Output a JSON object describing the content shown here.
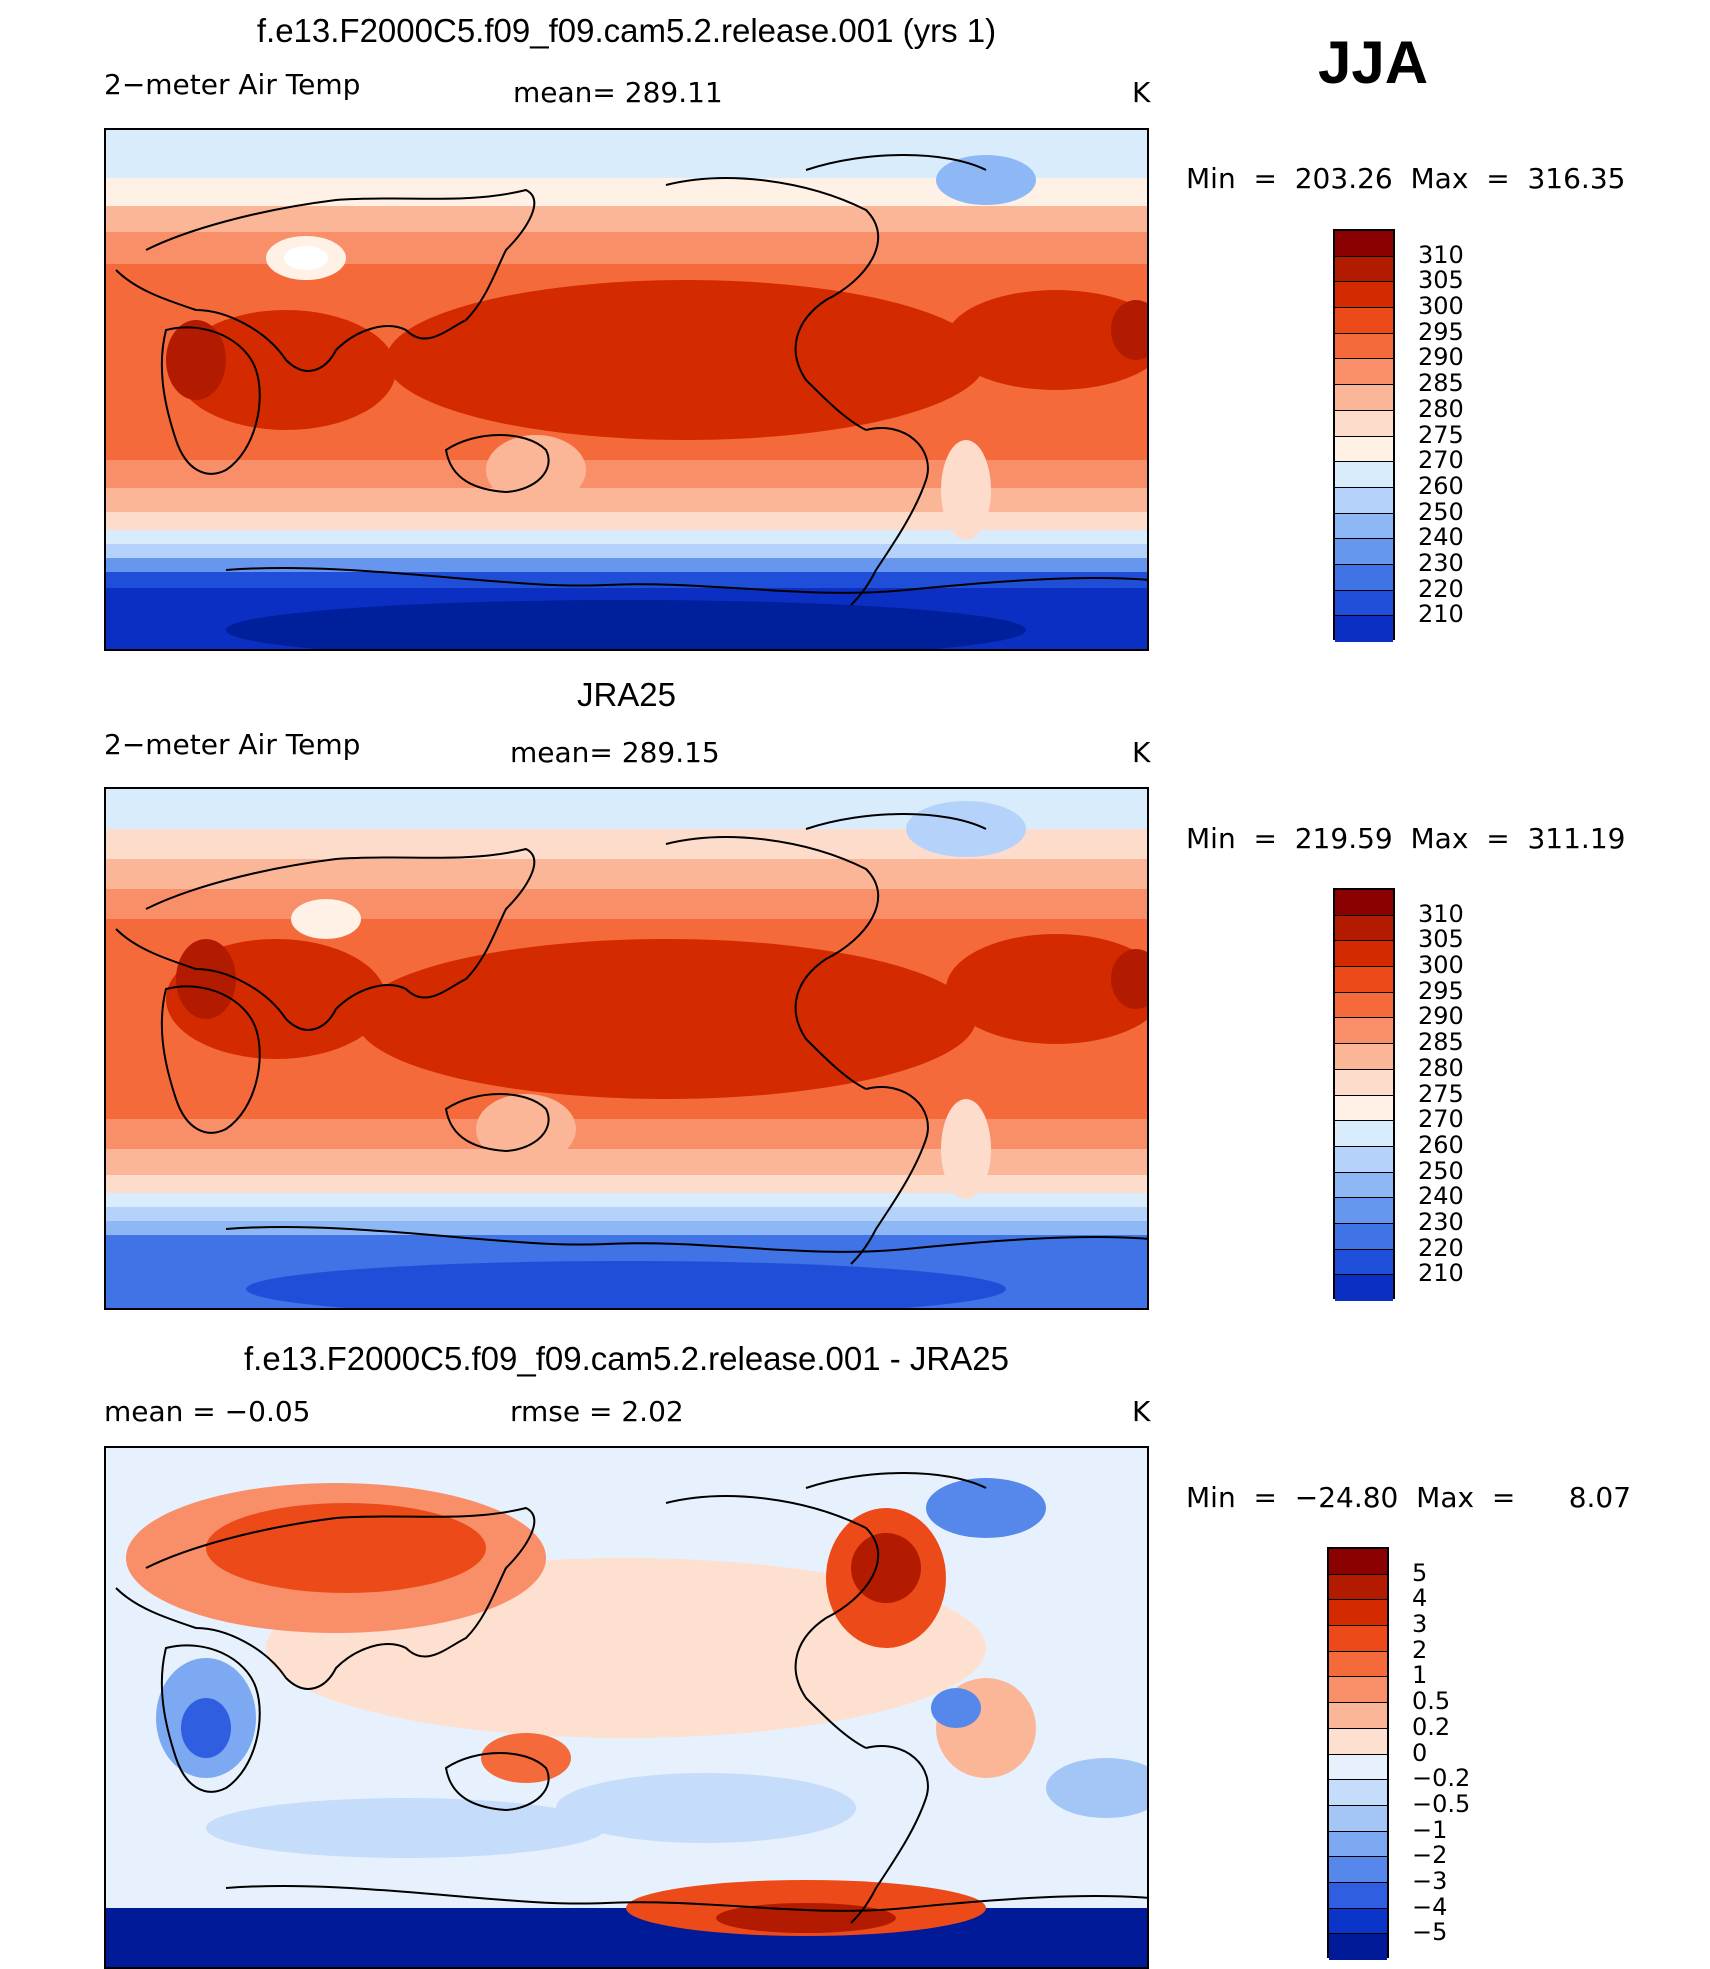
{
  "season": "JJA",
  "panels": [
    {
      "title": "f.e13.F2000C5.f09_f09.cam5.2.release.001 (yrs 1)",
      "left_label": "2−meter Air Temp",
      "center_label": "mean=  289.11",
      "units": "K",
      "minmax": "Min  =  203.26  Max  =  316.35",
      "colorbar_labels": [
        "310",
        "305",
        "300",
        "295",
        "290",
        "285",
        "280",
        "275",
        "270",
        "260",
        "250",
        "240",
        "230",
        "220",
        "210"
      ]
    },
    {
      "title": "JRA25",
      "left_label": "2−meter Air Temp",
      "center_label": "mean=  289.15",
      "units": "K",
      "minmax": "Min  =  219.59  Max  =  311.19",
      "colorbar_labels": [
        "310",
        "305",
        "300",
        "295",
        "290",
        "285",
        "280",
        "275",
        "270",
        "260",
        "250",
        "240",
        "230",
        "220",
        "210"
      ]
    },
    {
      "title": "f.e13.F2000C5.f09_f09.cam5.2.release.001 - JRA25",
      "left_label": "mean  =     −0.05",
      "center_label": "rmse  =      2.02",
      "units": "K",
      "minmax": "Min  =  −24.80  Max  =      8.07",
      "colorbar_labels": [
        "5",
        "4",
        "3",
        "2",
        "1",
        "0.5",
        "0.2",
        "0",
        "−0.2",
        "−0.5",
        "−1",
        "−2",
        "−3",
        "−4",
        "−5"
      ]
    }
  ],
  "colors": {
    "temp_scale": [
      "#8b0000",
      "#b31b00",
      "#d42a00",
      "#ec4a18",
      "#f56a3a",
      "#f88f68",
      "#fbb698",
      "#fddccb",
      "#fff1e6",
      "#d9ecfc",
      "#b5d3fa",
      "#8db7f5",
      "#6696ee",
      "#3f73e6",
      "#1f4fd8",
      "#0a2fc2",
      "#001f9a",
      "#000f6e"
    ],
    "diff_scale": [
      "#8b0000",
      "#b31b00",
      "#d42a00",
      "#ec4a18",
      "#f56a3a",
      "#f88f68",
      "#fbb698",
      "#fde0d0",
      "#e6f1fd",
      "#c5ddfb",
      "#a3c6f7",
      "#7da9f2",
      "#5687ea",
      "#2f5fe0",
      "#0b35c9",
      "#001a98"
    ]
  }
}
